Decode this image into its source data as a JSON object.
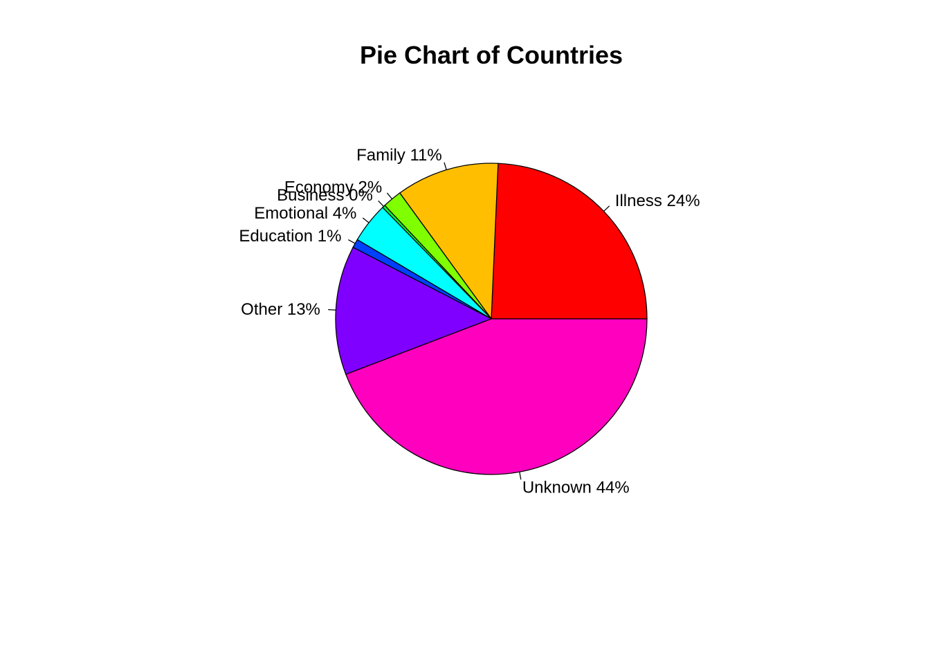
{
  "chart_data": {
    "type": "pie",
    "title": "Pie Chart of Countries",
    "start_angle_deg": 0,
    "direction": "counterclockwise",
    "slices": [
      {
        "name": "Illness",
        "value": 24.3,
        "label": "Illness 24%",
        "color": "#FF0000"
      },
      {
        "name": "Family",
        "value": 10.7,
        "label": "Family 11%",
        "color": "#FFBF00"
      },
      {
        "name": "Economy",
        "value": 2.0,
        "label": "Economy 2%",
        "color": "#80FF00"
      },
      {
        "name": "Business",
        "value": 0.3,
        "label": "Business 0%",
        "color": "#00FF40"
      },
      {
        "name": "Emotional",
        "value": 4.2,
        "label": "Emotional 4%",
        "color": "#00FFFF"
      },
      {
        "name": "Education",
        "value": 0.9,
        "label": "Education 1%",
        "color": "#0040FF"
      },
      {
        "name": "Other",
        "value": 13.4,
        "label": "Other 13%",
        "color": "#8000FF"
      },
      {
        "name": "Unknown",
        "value": 44.2,
        "label": "Unknown 44%",
        "color": "#FF00BF"
      }
    ]
  }
}
